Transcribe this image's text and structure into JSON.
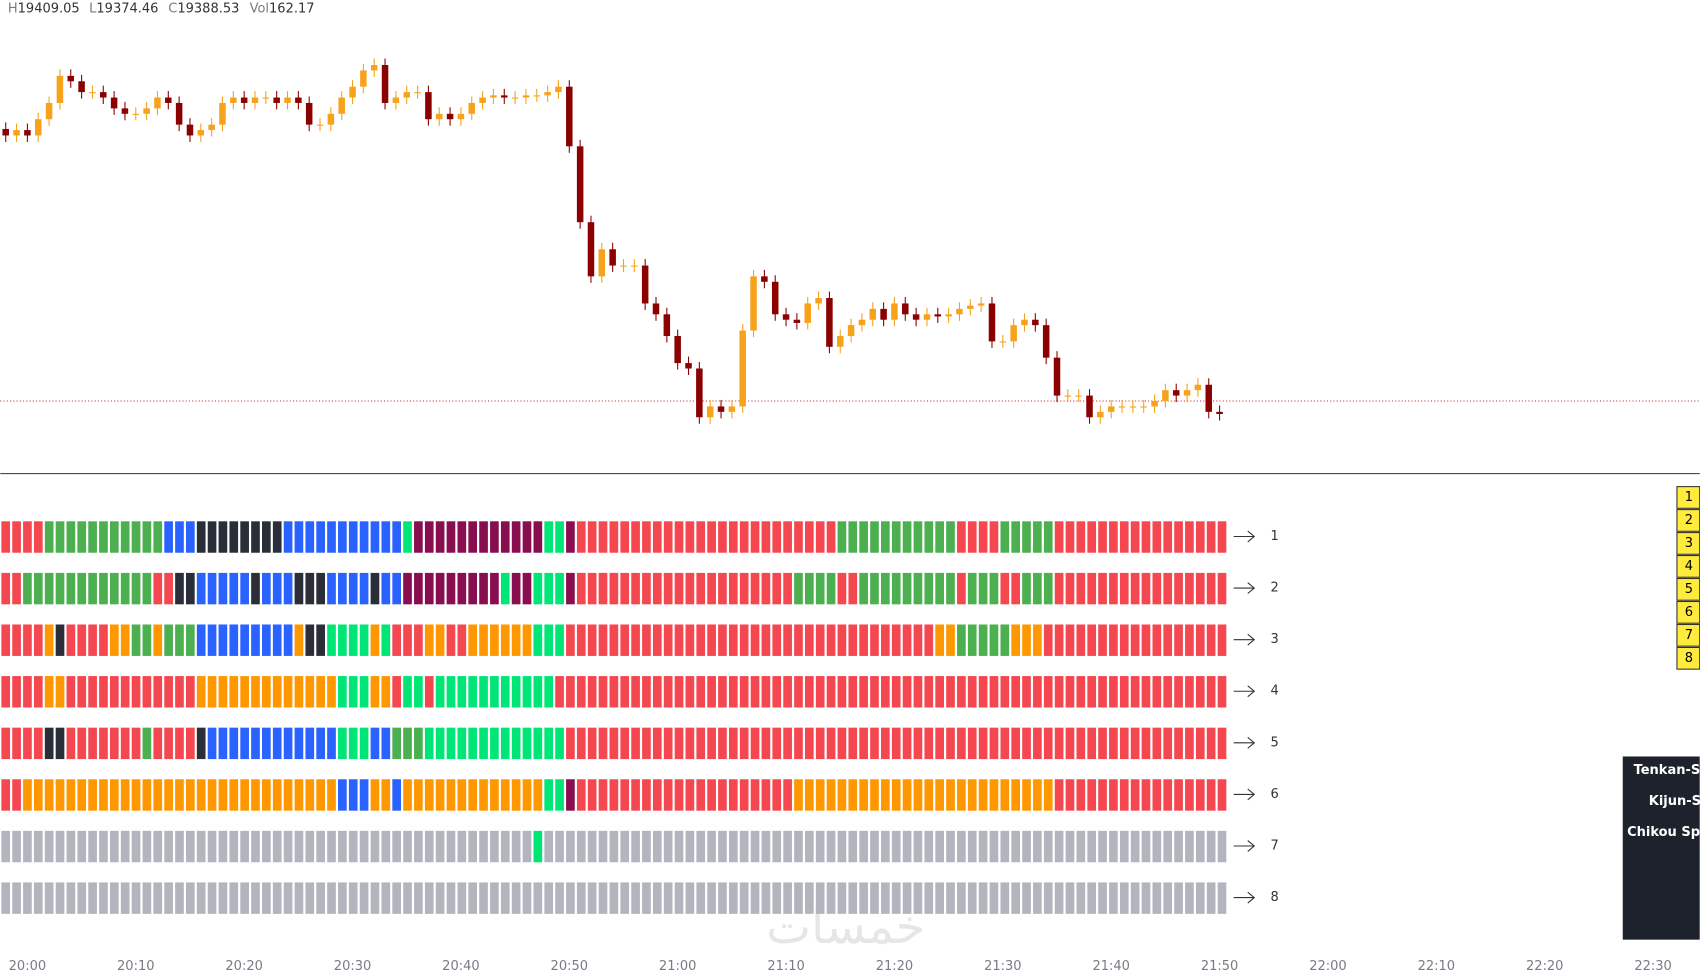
{
  "chart_data": {
    "type": "candlestick",
    "header": [
      {
        "key": "H",
        "value": "19409.05"
      },
      {
        "key": "L",
        "value": "19374.46"
      },
      {
        "key": "C",
        "value": "19388.53"
      },
      {
        "key": "Vol",
        "value": "162.17"
      }
    ],
    "up_color": "#f7a21b",
    "down_color": "#8b0000",
    "price_line": 19388.5,
    "price_line_color": "#c62828",
    "ylim": [
      19355,
      19573.5
    ],
    "x_labels": [
      "20:00",
      "20:10",
      "20:20",
      "20:30",
      "20:40",
      "20:50",
      "21:00",
      "21:10",
      "21:20",
      "21:30",
      "21:40",
      "21:50",
      "22:00",
      "22:10",
      "22:20",
      "22:30"
    ],
    "ohlc": [
      [
        19514,
        19517,
        19508,
        19511
      ],
      [
        19511,
        19516.5,
        19508,
        19513.5
      ],
      [
        19513.5,
        19516.5,
        19508,
        19511
      ],
      [
        19511,
        19521.5,
        19508,
        19518.5
      ],
      [
        19518.5,
        19529,
        19515.5,
        19526
      ],
      [
        19526,
        19541.5,
        19523,
        19538.5
      ],
      [
        19538.5,
        19541.5,
        19533,
        19536
      ],
      [
        19536,
        19539,
        19528,
        19531
      ],
      [
        19531,
        19534,
        19528,
        19531
      ],
      [
        19531,
        19534,
        19525.5,
        19528.5
      ],
      [
        19528.5,
        19531.5,
        19520.5,
        19523.5
      ],
      [
        19523.5,
        19526.5,
        19518,
        19521
      ],
      [
        19521,
        19524,
        19518,
        19521
      ],
      [
        19521,
        19526.5,
        19518,
        19523.5
      ],
      [
        19523.5,
        19531.5,
        19520.5,
        19528.5
      ],
      [
        19528.5,
        19531.5,
        19523,
        19526
      ],
      [
        19526,
        19529,
        19513,
        19516
      ],
      [
        19516,
        19519,
        19508,
        19511
      ],
      [
        19511,
        19516.5,
        19508,
        19513.5
      ],
      [
        19513.5,
        19519,
        19510.5,
        19516
      ],
      [
        19516,
        19529,
        19513,
        19526
      ],
      [
        19526,
        19531.5,
        19523,
        19528.5
      ],
      [
        19528.5,
        19531.5,
        19523,
        19526
      ],
      [
        19526,
        19531.5,
        19523,
        19528.5
      ],
      [
        19528.5,
        19531.5,
        19525.5,
        19528.5
      ],
      [
        19528.5,
        19531.5,
        19523,
        19526
      ],
      [
        19526,
        19531.5,
        19523,
        19528.5
      ],
      [
        19528.5,
        19531.5,
        19523,
        19526
      ],
      [
        19526,
        19529,
        19513,
        19516
      ],
      [
        19516,
        19519,
        19513,
        19516
      ],
      [
        19516,
        19524,
        19513,
        19521
      ],
      [
        19521,
        19531.5,
        19518,
        19528.5
      ],
      [
        19528.5,
        19536.5,
        19525.5,
        19533.5
      ],
      [
        19533.5,
        19544,
        19530.5,
        19541
      ],
      [
        19541,
        19546.5,
        19538,
        19543.5
      ],
      [
        19543.5,
        19546.5,
        19523,
        19526
      ],
      [
        19526,
        19531.5,
        19523,
        19528.5
      ],
      [
        19528.5,
        19534,
        19525.5,
        19531
      ],
      [
        19531,
        19534,
        19528,
        19531
      ],
      [
        19531,
        19534,
        19515.5,
        19518.5
      ],
      [
        19518.5,
        19524,
        19515.5,
        19521
      ],
      [
        19521,
        19524,
        19515.5,
        19518.5
      ],
      [
        19518.5,
        19524,
        19515.5,
        19521
      ],
      [
        19521,
        19529,
        19518,
        19526
      ],
      [
        19526,
        19531.5,
        19523,
        19528.5
      ],
      [
        19528.5,
        19532.5,
        19525.5,
        19529.5
      ],
      [
        19529.5,
        19532.5,
        19525.5,
        19528.5
      ],
      [
        19528.5,
        19531.5,
        19525.5,
        19528.5
      ],
      [
        19528.5,
        19532.5,
        19525.5,
        19529.5
      ],
      [
        19529.5,
        19532.5,
        19526.5,
        19529.5
      ],
      [
        19529.5,
        19534,
        19526.5,
        19531
      ],
      [
        19531,
        19536.5,
        19528,
        19533.5
      ],
      [
        19533.5,
        19536.5,
        19503,
        19506
      ],
      [
        19506,
        19509,
        19468,
        19471
      ],
      [
        19471,
        19474,
        19443,
        19446
      ],
      [
        19446,
        19461.5,
        19443,
        19458.5
      ],
      [
        19458.5,
        19461.5,
        19448,
        19451
      ],
      [
        19451,
        19454,
        19448,
        19451
      ],
      [
        19451,
        19454,
        19448,
        19451
      ],
      [
        19451,
        19454,
        19430.5,
        19433.5
      ],
      [
        19433.5,
        19436.5,
        19425.5,
        19428.5
      ],
      [
        19428.5,
        19431.5,
        19415.5,
        19418.5
      ],
      [
        19418.5,
        19421.5,
        19403,
        19406
      ],
      [
        19406,
        19409,
        19400.5,
        19403.5
      ],
      [
        19403.5,
        19406.5,
        19378,
        19381
      ],
      [
        19381,
        19389,
        19378,
        19386
      ],
      [
        19386,
        19389,
        19380.5,
        19383.5
      ],
      [
        19383.5,
        19389,
        19380.5,
        19386
      ],
      [
        19386,
        19424,
        19383,
        19421
      ],
      [
        19421,
        19449,
        19418,
        19446
      ],
      [
        19446,
        19449,
        19440.5,
        19443.5
      ],
      [
        19443.5,
        19446.5,
        19425.5,
        19428.5
      ],
      [
        19428.5,
        19431.5,
        19423,
        19426
      ],
      [
        19426,
        19429,
        19421.5,
        19424.5
      ],
      [
        19424.5,
        19436.5,
        19421.5,
        19433.5
      ],
      [
        19433.5,
        19439,
        19430.5,
        19436
      ],
      [
        19436,
        19439,
        19410.5,
        19413.5
      ],
      [
        19413.5,
        19421.5,
        19410.5,
        19418.5
      ],
      [
        19418.5,
        19426.5,
        19415.5,
        19423.5
      ],
      [
        19423.5,
        19429,
        19420.5,
        19426
      ],
      [
        19426,
        19434,
        19423,
        19431
      ],
      [
        19431,
        19434,
        19423,
        19426
      ],
      [
        19426,
        19436.5,
        19423,
        19433.5
      ],
      [
        19433.5,
        19436.5,
        19425.5,
        19428.5
      ],
      [
        19428.5,
        19431.5,
        19423,
        19426
      ],
      [
        19426,
        19431.5,
        19423,
        19428.5
      ],
      [
        19428.5,
        19431.5,
        19424.5,
        19427.5
      ],
      [
        19427.5,
        19431.5,
        19424.5,
        19428.5
      ],
      [
        19428.5,
        19434,
        19425.5,
        19431
      ],
      [
        19431,
        19435.5,
        19428,
        19432.5
      ],
      [
        19432.5,
        19436.5,
        19429.5,
        19433.5
      ],
      [
        19433.5,
        19436.5,
        19413,
        19416
      ],
      [
        19416,
        19419,
        19413,
        19416
      ],
      [
        19416,
        19426.5,
        19413,
        19423.5
      ],
      [
        19423.5,
        19429,
        19420.5,
        19426
      ],
      [
        19426,
        19429,
        19420.5,
        19423.5
      ],
      [
        19423.5,
        19426.5,
        19405.5,
        19408.5
      ],
      [
        19408.5,
        19411.5,
        19388,
        19391
      ],
      [
        19391,
        19394,
        19388,
        19391
      ],
      [
        19391,
        19394,
        19388,
        19391
      ],
      [
        19391,
        19394,
        19378,
        19381
      ],
      [
        19381,
        19386.5,
        19378,
        19383.5
      ],
      [
        19383.5,
        19389,
        19380.5,
        19386
      ],
      [
        19386,
        19389,
        19383,
        19386
      ],
      [
        19386,
        19389,
        19383,
        19386
      ],
      [
        19386,
        19389,
        19383,
        19386
      ],
      [
        19386,
        19391.5,
        19383,
        19388.5
      ],
      [
        19388.5,
        19396.5,
        19385.5,
        19393.5
      ],
      [
        19393.5,
        19396.5,
        19388,
        19391
      ],
      [
        19391,
        19396.5,
        19388,
        19393.5
      ],
      [
        19393.5,
        19399,
        19390.5,
        19396
      ],
      [
        19396,
        19399,
        19380.5,
        19383.5
      ],
      [
        19383.5,
        19386.5,
        19379.5,
        19382.5
      ]
    ]
  },
  "indicator": {
    "palette": {
      "R": "#f4474f",
      "G": "#4caf50",
      "B": "#2962ff",
      "K": "#2a2e39",
      "M": "#880e4f",
      "O": "#ff9800",
      "L": "#00e676",
      "S": "#b2b5be"
    },
    "rows": [
      {
        "label": "1",
        "segments": [
          [
            "R",
            4
          ],
          [
            "G",
            11
          ],
          [
            "B",
            3
          ],
          [
            "K",
            8
          ],
          [
            "B",
            11
          ],
          [
            "L",
            1
          ],
          [
            "M",
            12
          ],
          [
            "L",
            2
          ],
          [
            "M",
            1
          ],
          [
            "R",
            24
          ],
          [
            "G",
            11
          ],
          [
            "R",
            4
          ],
          [
            "G",
            5
          ],
          [
            "R",
            16
          ]
        ]
      },
      {
        "label": "2",
        "segments": [
          [
            "R",
            2
          ],
          [
            "G",
            12
          ],
          [
            "R",
            2
          ],
          [
            "K",
            2
          ],
          [
            "B",
            5
          ],
          [
            "K",
            1
          ],
          [
            "B",
            3
          ],
          [
            "K",
            3
          ],
          [
            "B",
            4
          ],
          [
            "K",
            1
          ],
          [
            "B",
            2
          ],
          [
            "M",
            9
          ],
          [
            "L",
            1
          ],
          [
            "M",
            2
          ],
          [
            "L",
            3
          ],
          [
            "M",
            1
          ],
          [
            "R",
            20
          ],
          [
            "G",
            4
          ],
          [
            "R",
            2
          ],
          [
            "G",
            9
          ],
          [
            "R",
            1
          ],
          [
            "G",
            3
          ],
          [
            "R",
            2
          ],
          [
            "G",
            3
          ],
          [
            "R",
            16
          ]
        ]
      },
      {
        "label": "3",
        "segments": [
          [
            "R",
            4
          ],
          [
            "O",
            1
          ],
          [
            "K",
            1
          ],
          [
            "R",
            4
          ],
          [
            "O",
            2
          ],
          [
            "G",
            2
          ],
          [
            "O",
            1
          ],
          [
            "G",
            3
          ],
          [
            "B",
            9
          ],
          [
            "O",
            1
          ],
          [
            "K",
            2
          ],
          [
            "L",
            4
          ],
          [
            "O",
            1
          ],
          [
            "L",
            1
          ],
          [
            "R",
            3
          ],
          [
            "O",
            2
          ],
          [
            "R",
            2
          ],
          [
            "O",
            6
          ],
          [
            "L",
            3
          ],
          [
            "R",
            34
          ],
          [
            "O",
            2
          ],
          [
            "G",
            5
          ],
          [
            "O",
            3
          ],
          [
            "R",
            17
          ]
        ]
      },
      {
        "label": "4",
        "segments": [
          [
            "R",
            4
          ],
          [
            "O",
            2
          ],
          [
            "R",
            12
          ],
          [
            "O",
            13
          ],
          [
            "L",
            3
          ],
          [
            "O",
            2
          ],
          [
            "R",
            1
          ],
          [
            "L",
            2
          ],
          [
            "R",
            1
          ],
          [
            "L",
            11
          ],
          [
            "R",
            62
          ]
        ]
      },
      {
        "label": "5",
        "segments": [
          [
            "R",
            4
          ],
          [
            "K",
            2
          ],
          [
            "R",
            7
          ],
          [
            "G",
            1
          ],
          [
            "R",
            4
          ],
          [
            "K",
            1
          ],
          [
            "B",
            12
          ],
          [
            "L",
            3
          ],
          [
            "B",
            2
          ],
          [
            "G",
            3
          ],
          [
            "L",
            13
          ],
          [
            "R",
            61
          ]
        ]
      },
      {
        "label": "6",
        "segments": [
          [
            "R",
            2
          ],
          [
            "O",
            29
          ],
          [
            "B",
            3
          ],
          [
            "O",
            2
          ],
          [
            "B",
            1
          ],
          [
            "O",
            13
          ],
          [
            "L",
            2
          ],
          [
            "M",
            1
          ],
          [
            "R",
            20
          ],
          [
            "O",
            24
          ],
          [
            "R",
            16
          ]
        ]
      },
      {
        "label": "7",
        "segments": [
          [
            "S",
            49
          ],
          [
            "L",
            1
          ],
          [
            "S",
            63
          ]
        ]
      },
      {
        "label": "8",
        "segments": [
          [
            "S",
            113
          ]
        ]
      }
    ]
  },
  "legend_boxes": [
    "1",
    "2",
    "3",
    "4",
    "5",
    "6",
    "7",
    "8"
  ],
  "info_panel": [
    "Tenkan-S",
    "Kijun-S",
    "Chikou Sp"
  ],
  "watermark": "خمسات"
}
